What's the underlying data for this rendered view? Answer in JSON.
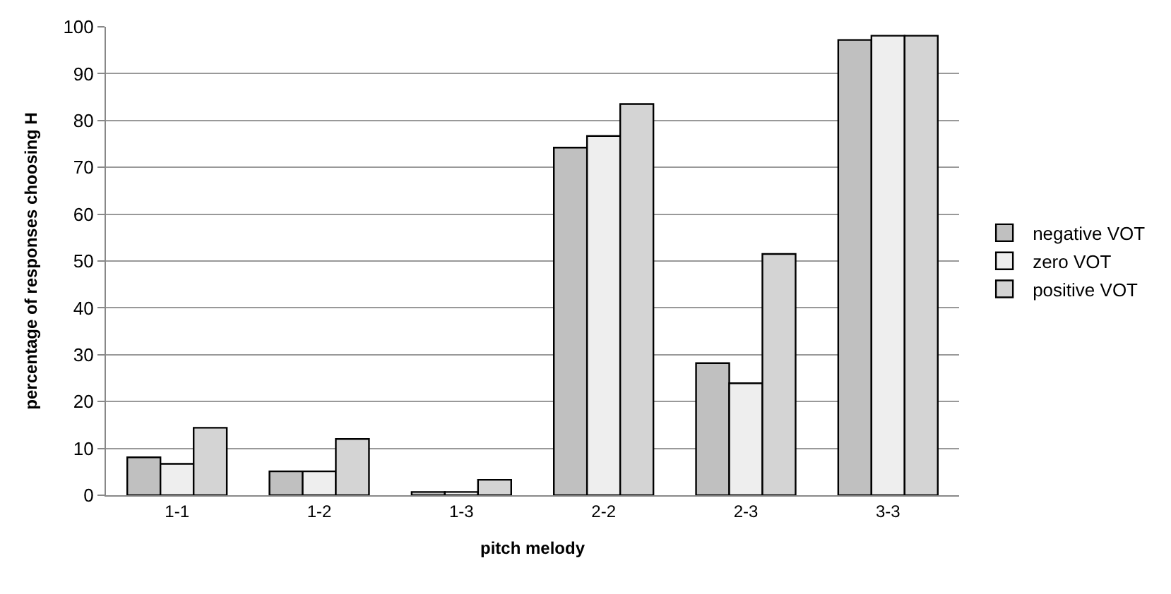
{
  "chart_data": {
    "type": "bar",
    "xlabel": "pitch melody",
    "ylabel": "percentage of responses choosing H",
    "categories": [
      "1-1",
      "1-2",
      "1-3",
      "2-2",
      "2-3",
      "3-3"
    ],
    "series": [
      {
        "name": "negative VOT",
        "color": "#c0c0c0",
        "values": [
          8.1,
          5.1,
          0.7,
          74.2,
          28.2,
          97.2
        ]
      },
      {
        "name": "zero VOT",
        "color": "#eeeeee",
        "values": [
          6.7,
          5.1,
          0.7,
          76.7,
          23.9,
          98.1
        ]
      },
      {
        "name": "positive VOT",
        "color": "#d4d4d4",
        "values": [
          14.4,
          12.0,
          3.3,
          83.5,
          51.5,
          98.1
        ]
      }
    ],
    "ylim": [
      0,
      100
    ],
    "yticks": [
      0,
      10,
      20,
      30,
      40,
      50,
      60,
      70,
      80,
      90,
      100
    ],
    "grid": "y",
    "legend": "right"
  }
}
